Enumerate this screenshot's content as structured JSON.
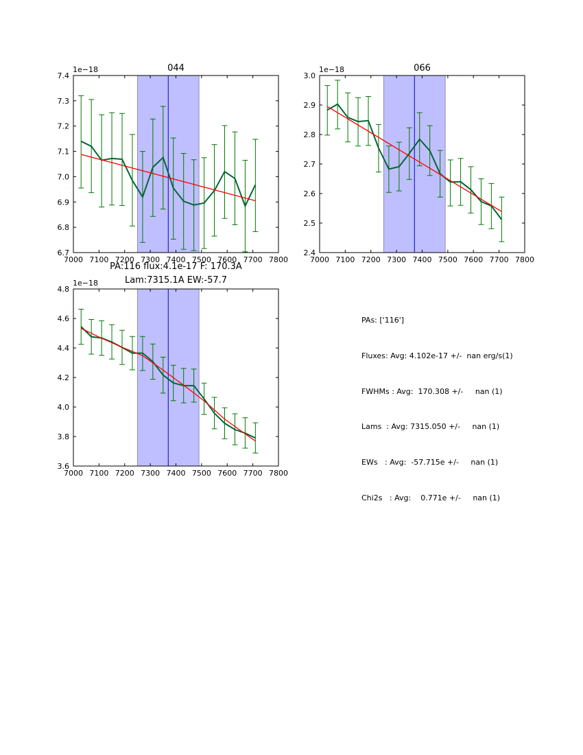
{
  "chart_data": [
    {
      "type": "line",
      "title": "044",
      "offset_label": "1e−18",
      "xlim": [
        7000,
        7800
      ],
      "ylim": [
        6.7,
        7.4
      ],
      "xticks": [
        7000,
        7100,
        7200,
        7300,
        7400,
        7500,
        7600,
        7700,
        7800
      ],
      "yticks": [
        6.7,
        6.8,
        6.9,
        7.0,
        7.1,
        7.2,
        7.3,
        7.4
      ],
      "ytick_labels": [
        "6.7",
        "6.8",
        "6.9",
        "7.0",
        "7.1",
        "7.2",
        "7.3",
        "7.4"
      ],
      "shaded_region": [
        7250,
        7490
      ],
      "center_line": 7370,
      "x": [
        7030,
        7070,
        7110,
        7150,
        7190,
        7230,
        7270,
        7310,
        7350,
        7390,
        7430,
        7470,
        7510,
        7550,
        7590,
        7630,
        7670,
        7710
      ],
      "series": [
        {
          "name": "spectrum",
          "color": "#006633",
          "values": [
            7.14,
            7.12,
            7.065,
            7.072,
            7.069,
            6.985,
            6.92,
            7.037,
            7.076,
            6.955,
            6.903,
            6.888,
            6.896,
            6.945,
            7.02,
            6.993,
            6.884,
            6.968
          ],
          "err_low": [
            6.955,
            6.937,
            6.88,
            6.888,
            6.886,
            6.805,
            6.74,
            6.843,
            6.872,
            6.753,
            6.713,
            6.708,
            6.716,
            6.765,
            6.835,
            6.81,
            6.703,
            6.783
          ],
          "err_high": [
            7.32,
            7.305,
            7.245,
            7.253,
            7.25,
            7.167,
            7.1,
            7.228,
            7.278,
            7.153,
            7.092,
            7.067,
            7.075,
            7.127,
            7.202,
            7.177,
            7.065,
            7.148
          ]
        },
        {
          "name": "fit",
          "color": "#ff0000",
          "x": [
            7030,
            7710
          ],
          "values": [
            7.088,
            6.905
          ]
        }
      ]
    },
    {
      "type": "line",
      "title": "066",
      "offset_label": "1e−18",
      "xlim": [
        7000,
        7800
      ],
      "ylim": [
        2.4,
        3.0
      ],
      "xticks": [
        7000,
        7100,
        7200,
        7300,
        7400,
        7500,
        7600,
        7700,
        7800
      ],
      "yticks": [
        2.4,
        2.5,
        2.6,
        2.7,
        2.8,
        2.9,
        3.0
      ],
      "ytick_labels": [
        "2.4",
        "2.5",
        "2.6",
        "2.7",
        "2.8",
        "2.9",
        "3.0"
      ],
      "shaded_region": [
        7250,
        7490
      ],
      "center_line": 7370,
      "x": [
        7030,
        7070,
        7110,
        7150,
        7190,
        7230,
        7270,
        7310,
        7350,
        7390,
        7430,
        7470,
        7510,
        7550,
        7590,
        7630,
        7670,
        7710
      ],
      "series": [
        {
          "name": "spectrum",
          "color": "#006633",
          "values": [
            2.883,
            2.903,
            2.858,
            2.844,
            2.847,
            2.754,
            2.683,
            2.691,
            2.736,
            2.784,
            2.745,
            2.667,
            2.639,
            2.64,
            2.613,
            2.573,
            2.558,
            2.512
          ],
          "err_low": [
            2.798,
            2.819,
            2.775,
            2.761,
            2.763,
            2.673,
            2.604,
            2.609,
            2.648,
            2.694,
            2.661,
            2.588,
            2.558,
            2.56,
            2.534,
            2.495,
            2.481,
            2.437
          ],
          "err_high": [
            2.966,
            2.984,
            2.941,
            2.925,
            2.929,
            2.834,
            2.761,
            2.774,
            2.823,
            2.874,
            2.83,
            2.746,
            2.714,
            2.719,
            2.691,
            2.65,
            2.634,
            2.588
          ]
        },
        {
          "name": "fit",
          "color": "#ff0000",
          "x": [
            7030,
            7710
          ],
          "values": [
            2.895,
            2.539
          ]
        }
      ]
    },
    {
      "type": "line",
      "title": "PA:116 flux:4.1e-17 F: 170.3A",
      "subtitle": "Lam:7315.1A EW:-57.7",
      "offset_label": "1e−18",
      "xlim": [
        7000,
        7800
      ],
      "ylim": [
        3.6,
        4.8
      ],
      "xticks": [
        7000,
        7100,
        7200,
        7300,
        7400,
        7500,
        7600,
        7700,
        7800
      ],
      "yticks": [
        3.6,
        3.8,
        4.0,
        4.2,
        4.4,
        4.6,
        4.8
      ],
      "ytick_labels": [
        "3.6",
        "3.8",
        "4.0",
        "4.2",
        "4.4",
        "4.6",
        "4.8"
      ],
      "shaded_region": [
        7250,
        7490
      ],
      "center_line": 7370,
      "x": [
        7030,
        7070,
        7110,
        7150,
        7190,
        7230,
        7270,
        7310,
        7350,
        7390,
        7430,
        7470,
        7510,
        7550,
        7590,
        7630,
        7670,
        7710
      ],
      "series": [
        {
          "name": "spectrum",
          "color": "#006633",
          "values": [
            4.545,
            4.476,
            4.468,
            4.44,
            4.404,
            4.365,
            4.365,
            4.307,
            4.216,
            4.163,
            4.145,
            4.145,
            4.055,
            3.958,
            3.89,
            3.847,
            3.823,
            3.79
          ],
          "err_low": [
            4.425,
            4.358,
            4.35,
            4.325,
            4.288,
            4.252,
            4.247,
            4.188,
            4.094,
            4.043,
            4.028,
            4.033,
            3.95,
            3.852,
            3.785,
            3.744,
            3.721,
            3.688
          ],
          "err_high": [
            4.663,
            4.593,
            4.585,
            4.558,
            4.52,
            4.478,
            4.478,
            4.427,
            4.338,
            4.283,
            4.262,
            4.257,
            4.162,
            4.066,
            3.995,
            3.954,
            3.927,
            3.893
          ]
        },
        {
          "name": "fit",
          "color": "#ff0000",
          "x": [
            7030,
            7110,
            7190,
            7270,
            7350,
            7430,
            7510,
            7590,
            7670,
            7710
          ],
          "values": [
            4.533,
            4.466,
            4.405,
            4.348,
            4.25,
            4.148,
            4.042,
            3.918,
            3.818,
            3.77
          ]
        }
      ]
    }
  ],
  "summary": {
    "lines": [
      "PAs: ['116']",
      "Fluxes: Avg: 4.102e-17 +/-  nan erg/s(1)",
      "FWHMs : Avg:  170.308 +/-     nan (1)",
      "Lams  : Avg: 7315.050 +/-     nan (1)",
      "EWs   : Avg:  -57.715e +/-     nan (1)",
      "Chi2s   : Avg:    0.771e +/-     nan (1)"
    ]
  }
}
